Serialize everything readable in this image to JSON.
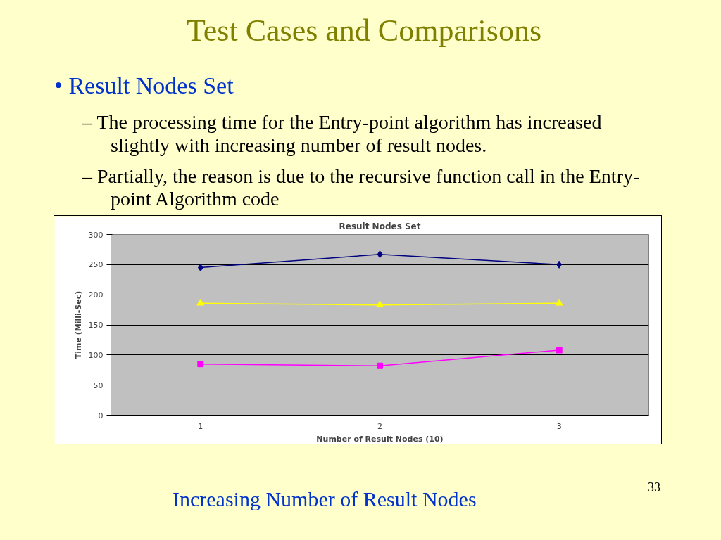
{
  "chart_data": {
    "type": "line",
    "title": "Result Nodes Set",
    "xlabel": "Number of Result Nodes (10)",
    "ylabel": "Time (Milli-Sec)",
    "categories": [
      "1",
      "2",
      "3"
    ],
    "series": [
      {
        "color": "#000080",
        "marker": "diamond",
        "values": [
          245,
          267,
          250
        ]
      },
      {
        "color": "#ffff00",
        "marker": "triangle",
        "values": [
          186,
          183,
          186
        ]
      },
      {
        "color": "#ff00ff",
        "marker": "square",
        "values": [
          85,
          82,
          108
        ]
      }
    ],
    "ylim": [
      0,
      300
    ],
    "yticks": [
      0,
      50,
      100,
      150,
      200,
      250,
      300
    ],
    "grid": "y",
    "annotations": [
      "Test Cases and Comparisons",
      "• Result Nodes Set",
      "– The processing time for the Entry-point algorithm has increased slightly with increasing number of result nodes.",
      "– Partially, the reason is due to the recursive function call in the Entry-point Algorithm code",
      "Increasing Number of Result Nodes",
      "33"
    ]
  }
}
